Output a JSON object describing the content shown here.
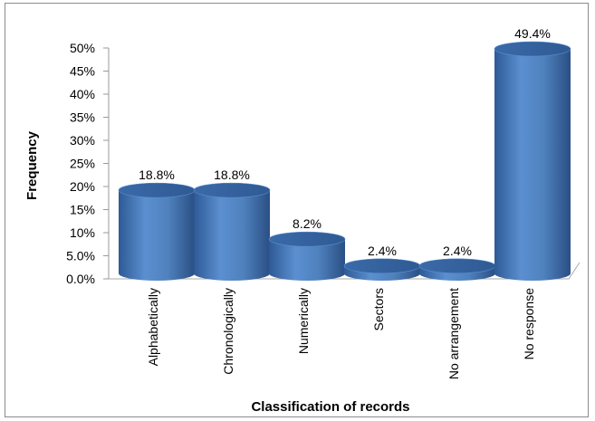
{
  "chart_data": {
    "type": "bar",
    "style": "3d-cylinder",
    "xlabel": "Classification of records",
    "ylabel": "Frequency",
    "ylim": [
      0,
      50
    ],
    "yticks": [
      "0.0%",
      "5.0%",
      "10%",
      "15%",
      "20%",
      "25%",
      "30%",
      "35%",
      "40%",
      "45%",
      "50%"
    ],
    "categories": [
      "Alphabetically",
      "Chronologically",
      "Numerically",
      "Sectors",
      "No arrangement",
      "No response"
    ],
    "values": [
      18.8,
      18.8,
      8.2,
      2.4,
      2.4,
      49.4
    ],
    "data_labels": [
      "18.8%",
      "18.8%",
      "8.2%",
      "2.4%",
      "2.4%",
      "49.4%"
    ],
    "colors": {
      "bar_front": "#4f81bd",
      "bar_top": "#3a65a0",
      "bar_dark": "#2c5286"
    },
    "grid": false,
    "legend": "none"
  }
}
